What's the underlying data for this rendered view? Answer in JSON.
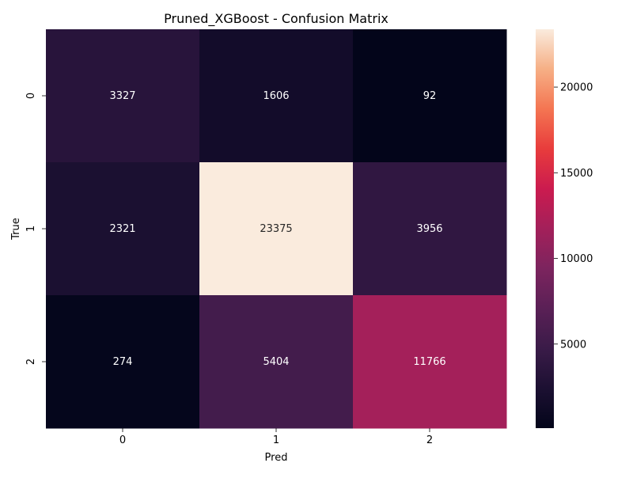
{
  "chart_data": {
    "type": "heatmap",
    "title": "Pruned_XGBoost - Confusion Matrix",
    "xlabel": "Pred",
    "ylabel": "True",
    "x_categories": [
      "0",
      "1",
      "2"
    ],
    "y_categories": [
      "0",
      "1",
      "2"
    ],
    "values": [
      [
        3327,
        1606,
        92
      ],
      [
        2321,
        23375,
        3956
      ],
      [
        274,
        5404,
        11766
      ]
    ],
    "colorbar": {
      "ticks": [
        5000,
        10000,
        15000,
        20000
      ],
      "range": [
        92,
        23375
      ]
    },
    "colormap": "rocket",
    "grid": false
  }
}
